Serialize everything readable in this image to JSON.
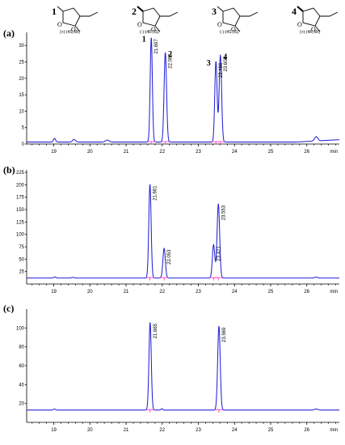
{
  "figure": {
    "compounds": [
      {
        "number": "1",
        "name": "(+)-(4S,5R)"
      },
      {
        "number": "2",
        "name": "(-)-(4R,5S)"
      },
      {
        "number": "3",
        "name": "(-)-(4S,5S)"
      },
      {
        "number": "4",
        "name": "(+)-(4R,5R)"
      }
    ]
  },
  "chart_data": [
    {
      "type": "line",
      "panel": "(a)",
      "x_unit": "min",
      "xlim": [
        18.25,
        26.9
      ],
      "ylim": [
        0,
        34
      ],
      "x_ticks": [
        19,
        20,
        21,
        22,
        23,
        24,
        25,
        26
      ],
      "y_ticks": [
        0,
        5,
        10,
        15,
        20,
        25,
        30
      ],
      "baseline_value": 0.6,
      "peaks": [
        {
          "x": 21.697,
          "height": 31.8,
          "width": 0.03,
          "label": "21.697",
          "number": "1"
        },
        {
          "x": 22.086,
          "height": 27.3,
          "width": 0.034,
          "label": "22.086",
          "number": "2"
        },
        {
          "x": 23.486,
          "height": 24.5,
          "width": 0.032,
          "label": "23.486",
          "number": "3"
        },
        {
          "x": 23.609,
          "height": 26.4,
          "width": 0.034,
          "label": "23.609",
          "number": "4"
        }
      ],
      "minor_peaks": [
        {
          "x": 19.02,
          "height": 1.1,
          "width": 0.03
        },
        {
          "x": 19.56,
          "height": 0.8,
          "width": 0.04
        },
        {
          "x": 20.48,
          "height": 0.6,
          "width": 0.05
        },
        {
          "x": 26.26,
          "height": 1.3,
          "width": 0.045
        }
      ]
    },
    {
      "type": "line",
      "panel": "(b)",
      "x_unit": "min",
      "xlim": [
        18.25,
        26.9
      ],
      "ylim": [
        0,
        230
      ],
      "x_ticks": [
        19,
        20,
        21,
        22,
        23,
        24,
        25,
        26
      ],
      "y_ticks": [
        25,
        50,
        75,
        100,
        125,
        150,
        175,
        200,
        225
      ],
      "baseline_value": 12,
      "peaks": [
        {
          "x": 21.661,
          "height": 189,
          "width": 0.032,
          "label": "21.661"
        },
        {
          "x": 22.053,
          "height": 60,
          "width": 0.034,
          "label": "22.053"
        },
        {
          "x": 23.421,
          "height": 67,
          "width": 0.034,
          "label": "23.421"
        },
        {
          "x": 23.553,
          "height": 149,
          "width": 0.036,
          "label": "23.553"
        }
      ],
      "minor_peaks": [
        {
          "x": 19.03,
          "height": 2.2,
          "width": 0.03
        },
        {
          "x": 19.53,
          "height": 1.2,
          "width": 0.04
        },
        {
          "x": 26.26,
          "height": 1.8,
          "width": 0.045
        }
      ]
    },
    {
      "type": "line",
      "panel": "(c)",
      "x_unit": "min",
      "xlim": [
        18.25,
        26.9
      ],
      "ylim": [
        0,
        120
      ],
      "x_ticks": [
        19,
        20,
        21,
        22,
        23,
        24,
        25,
        26
      ],
      "y_ticks": [
        20,
        40,
        60,
        80,
        100
      ],
      "baseline_value": 13,
      "peaks": [
        {
          "x": 21.665,
          "height": 93,
          "width": 0.032,
          "label": "21.665"
        },
        {
          "x": 23.569,
          "height": 89,
          "width": 0.035,
          "label": "23.569"
        }
      ],
      "minor_peaks": [
        {
          "x": 19.02,
          "height": 1.1,
          "width": 0.03
        },
        {
          "x": 21.99,
          "height": 1.5,
          "width": 0.02
        },
        {
          "x": 26.26,
          "height": 1.1,
          "width": 0.045
        }
      ]
    }
  ]
}
